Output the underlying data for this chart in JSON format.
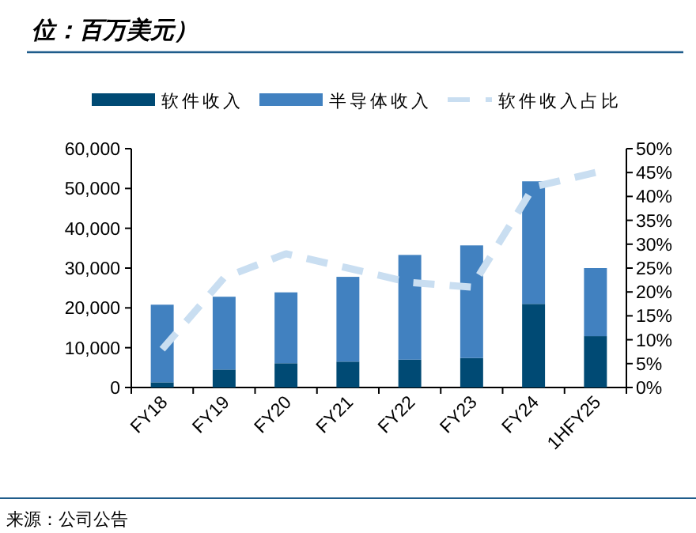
{
  "chart_data": {
    "type": "bar",
    "title": "位：百万美元）",
    "stacked": true,
    "legend": "top",
    "grid": false,
    "categories": [
      "FY18",
      "FY19",
      "FY20",
      "FY21",
      "FY22",
      "FY23",
      "FY24",
      "1HFY25"
    ],
    "series": [
      {
        "name": "软件收入",
        "color": "#004a74",
        "values": [
          1300,
          4500,
          6100,
          6500,
          7000,
          7400,
          21000,
          12900
        ]
      },
      {
        "name": "半导体收入",
        "color": "#4181c0",
        "values": [
          19500,
          18300,
          17800,
          21300,
          26300,
          28300,
          30800,
          17100
        ]
      },
      {
        "name": "软件收入占比",
        "type": "line",
        "axis": "y2",
        "line_style": "dashed",
        "color": "#c9def1",
        "values": [
          8,
          23,
          28,
          25,
          22,
          21,
          42,
          45
        ]
      }
    ],
    "ylim": [
      0,
      60000
    ],
    "yticks": [
      0,
      {
        "value": 10000,
        "label": "10,000"
      },
      {
        "value": 20000,
        "label": "20,000"
      },
      {
        "value": 30000,
        "label": "30,000"
      },
      {
        "value": 40000,
        "label": "40,000"
      },
      {
        "value": 50000,
        "label": "50,000"
      },
      {
        "value": 60000,
        "label": "60,000"
      }
    ],
    "y2lim": [
      0,
      50
    ],
    "y2ticks": [
      {
        "value": 0,
        "label": "0%"
      },
      {
        "value": 5,
        "label": "5%"
      },
      {
        "value": 10,
        "label": "10%"
      },
      {
        "value": 15,
        "label": "15%"
      },
      {
        "value": 20,
        "label": "20%"
      },
      {
        "value": 25,
        "label": "25%"
      },
      {
        "value": 30,
        "label": "30%"
      },
      {
        "value": 35,
        "label": "35%"
      },
      {
        "value": 40,
        "label": "40%"
      },
      {
        "value": 45,
        "label": "45%"
      },
      {
        "value": 50,
        "label": "50%"
      }
    ],
    "annotations": [
      "来源：公司公告"
    ]
  }
}
